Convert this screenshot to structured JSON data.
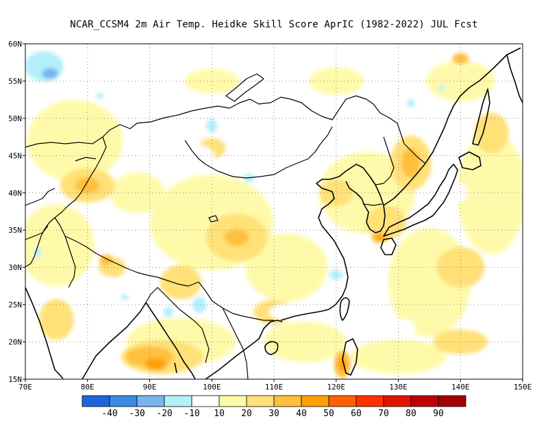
{
  "title": "NCAR_CCSM4  2m Air Temp. Heidke Skill Score AprIC (1982-2022) JUL Fcst",
  "map": {
    "lon_range": [
      70,
      150
    ],
    "lat_range": [
      15,
      60
    ],
    "lon_ticks": [
      "70E",
      "80E",
      "90E",
      "100E",
      "110E",
      "120E",
      "130E",
      "140E",
      "150E"
    ],
    "lat_ticks": [
      "15N",
      "20N",
      "25N",
      "30N",
      "35N",
      "40N",
      "45N",
      "50N",
      "55N",
      "60N"
    ],
    "grid": "dotted"
  },
  "legend": {
    "colors": [
      "#1f64dc",
      "#3c8ce6",
      "#78b4f0",
      "#b4f0fa",
      "#ffffff",
      "#fffaaa",
      "#ffe178",
      "#ffc03c",
      "#ffa000",
      "#ff6000",
      "#ff3200",
      "#e11400",
      "#c00000",
      "#a50000"
    ],
    "labels": [
      "-40",
      "-30",
      "-20",
      "-10",
      "10",
      "20",
      "30",
      "40",
      "50",
      "60",
      "70",
      "80",
      "90"
    ]
  },
  "chart_data": {
    "type": "heatmap",
    "title": "NCAR_CCSM4  2m Air Temp. Heidke Skill Score AprIC (1982-2022) JUL Fcst",
    "x_range_lon": [
      70,
      150
    ],
    "y_range_lat": [
      15,
      60
    ],
    "color_levels": [
      -40,
      -30,
      -20,
      -10,
      10,
      20,
      30,
      40,
      50,
      60,
      70,
      80,
      90
    ],
    "features": [
      {
        "region": "NW corner (70-78E, 54-59N)",
        "value": -25
      },
      {
        "region": "Taiwan Strait / East China coast (120E, 29N)",
        "value": -15
      },
      {
        "region": "Myanmar/Bay of Bengal (88-96E, 16-21N)",
        "value": 45
      },
      {
        "region": "Philippines north (121E, 17N)",
        "value": 45
      },
      {
        "region": "Sichuan basin (104E, 34N)",
        "value": 40
      },
      {
        "region": "Manchuria / Sea of Japan (132E, 42N)",
        "value": 35
      },
      {
        "region": "Southern Japan (127E, 34N)",
        "value": 50
      },
      {
        "region": "Kazakhstan (80E, 41N)",
        "value": 30
      }
    ]
  }
}
